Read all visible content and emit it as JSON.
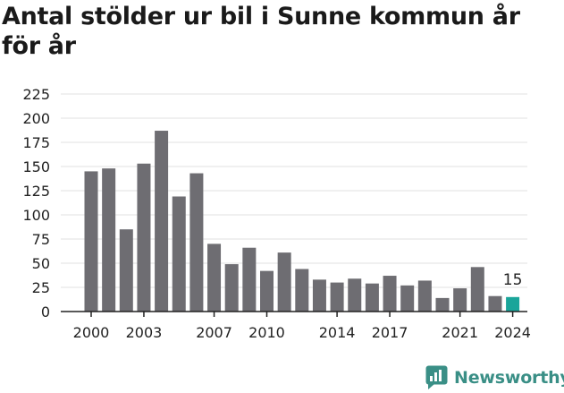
{
  "chart_data": {
    "type": "bar",
    "title": "Antal stölder ur bil i Sunne kommun år för år",
    "xlabel": "",
    "ylabel": "",
    "categories": [
      2000,
      2001,
      2002,
      2003,
      2004,
      2005,
      2006,
      2007,
      2008,
      2009,
      2010,
      2011,
      2012,
      2013,
      2014,
      2015,
      2016,
      2017,
      2018,
      2019,
      2020,
      2021,
      2022,
      2023,
      2024
    ],
    "values": [
      145,
      148,
      85,
      153,
      187,
      119,
      143,
      70,
      49,
      66,
      42,
      61,
      44,
      33,
      30,
      34,
      29,
      37,
      27,
      32,
      14,
      24,
      46,
      16,
      15
    ],
    "x_tick_labels": [
      "2000",
      "2003",
      "2007",
      "2010",
      "2014",
      "2017",
      "2021",
      "2024"
    ],
    "y_ticks": [
      0,
      25,
      50,
      75,
      100,
      125,
      150,
      175,
      200,
      225
    ],
    "ylim": [
      0,
      225
    ],
    "grid": true,
    "highlight": {
      "category": 2024,
      "label": "15"
    },
    "colors": {
      "bar": "#6e6d72",
      "highlight": "#1aa59a",
      "grid": "#e2e2e2",
      "axis": "#222222"
    }
  },
  "brand": {
    "name": "Newsworthy",
    "icon": "newsworthy-logo-icon",
    "color": "#3a8f86"
  }
}
